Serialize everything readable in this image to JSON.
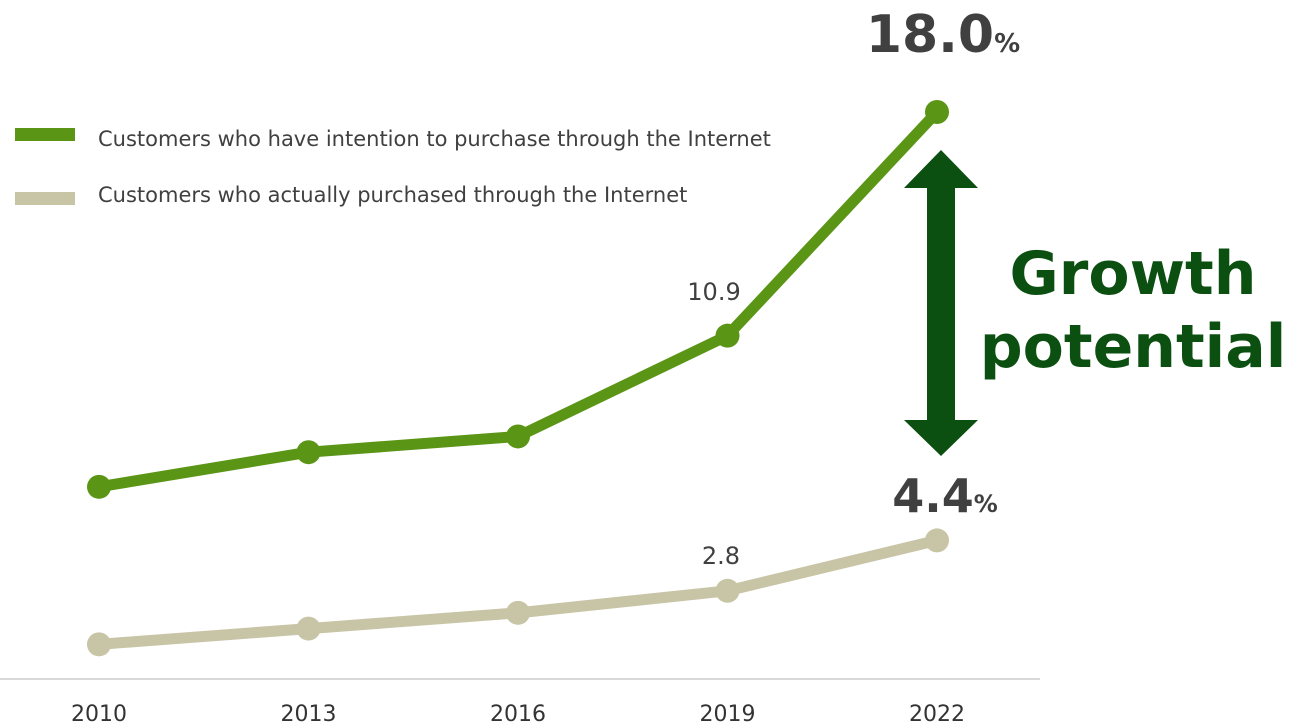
{
  "chart_data": {
    "type": "line",
    "categories": [
      "2010",
      "2013",
      "2016",
      "2019",
      "2022"
    ],
    "series": [
      {
        "name": "Customers who have intention to purchase through the Internet",
        "values": [
          6.1,
          7.2,
          7.7,
          10.9,
          18.0
        ],
        "color": "#5a9515"
      },
      {
        "name": "Customers who actually purchased through the Internet",
        "values": [
          1.1,
          1.6,
          2.1,
          2.8,
          4.4
        ],
        "color": "#c8c4a6"
      }
    ],
    "ylim": [
      0,
      20
    ],
    "grid": false,
    "legend_position": "top-left",
    "annotations": {
      "intention_2019": "10.9",
      "actual_2019": "2.8",
      "intention_2022_value": "18.0",
      "actual_2022_value": "4.4",
      "percent_sign": "%",
      "growth_line1": "Growth",
      "growth_line2": "potential"
    }
  },
  "colors": {
    "arrow": "#0b5010",
    "axis": "#d9d9d9"
  }
}
